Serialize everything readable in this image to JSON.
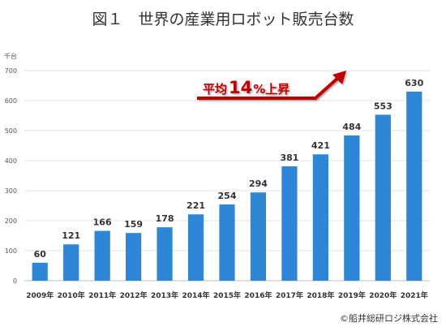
{
  "chart_data": {
    "type": "bar",
    "title": "図１　世界の産業用ロボット販売台数",
    "unit_label": "千台",
    "categories": [
      "2009年",
      "2010年",
      "2011年",
      "2012年",
      "2013年",
      "2014年",
      "2015年",
      "2016年",
      "2017年",
      "2018年",
      "2019年",
      "2020年",
      "2021年"
    ],
    "values": [
      60,
      121,
      166,
      159,
      178,
      221,
      254,
      294,
      381,
      421,
      484,
      553,
      630
    ],
    "ylim": [
      0,
      700
    ],
    "yticks": [
      0,
      100,
      200,
      300,
      400,
      500,
      600,
      700
    ],
    "grid": true,
    "bar_color": "#2e86d6",
    "annotation": {
      "prefix": "平均",
      "number": "14",
      "suffix": "%上昇",
      "color": "#c00000"
    },
    "credit": "©船井総研ロジ株式会社"
  }
}
